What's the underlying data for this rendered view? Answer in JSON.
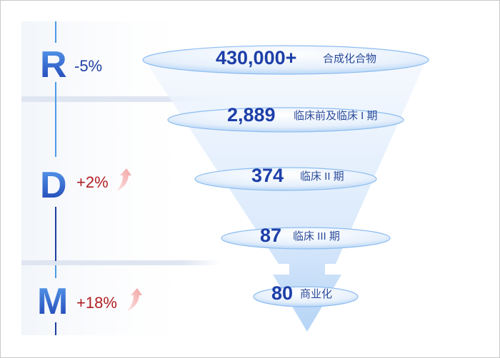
{
  "stages": [
    {
      "letter": "R",
      "change": "-5%",
      "trend": "down",
      "color": "#1e3fa0"
    },
    {
      "letter": "D",
      "change": "+2%",
      "trend": "up",
      "color": "#b01e22"
    },
    {
      "letter": "M",
      "change": "+18%",
      "trend": "up",
      "color": "#b01e22"
    }
  ],
  "funnel": [
    {
      "value": "430,000+",
      "label": "合成化合物"
    },
    {
      "value": "2,889",
      "label": "临床前及临床 I 期"
    },
    {
      "value": "374",
      "label": "临床 II 期"
    },
    {
      "value": "87",
      "label": "临床 III 期"
    },
    {
      "value": "80",
      "label": "商业化"
    }
  ],
  "colors": {
    "accent": "#2a5bd7",
    "ellipse": "#dcebfb",
    "ellipse_edge": "#6aa6e8"
  }
}
